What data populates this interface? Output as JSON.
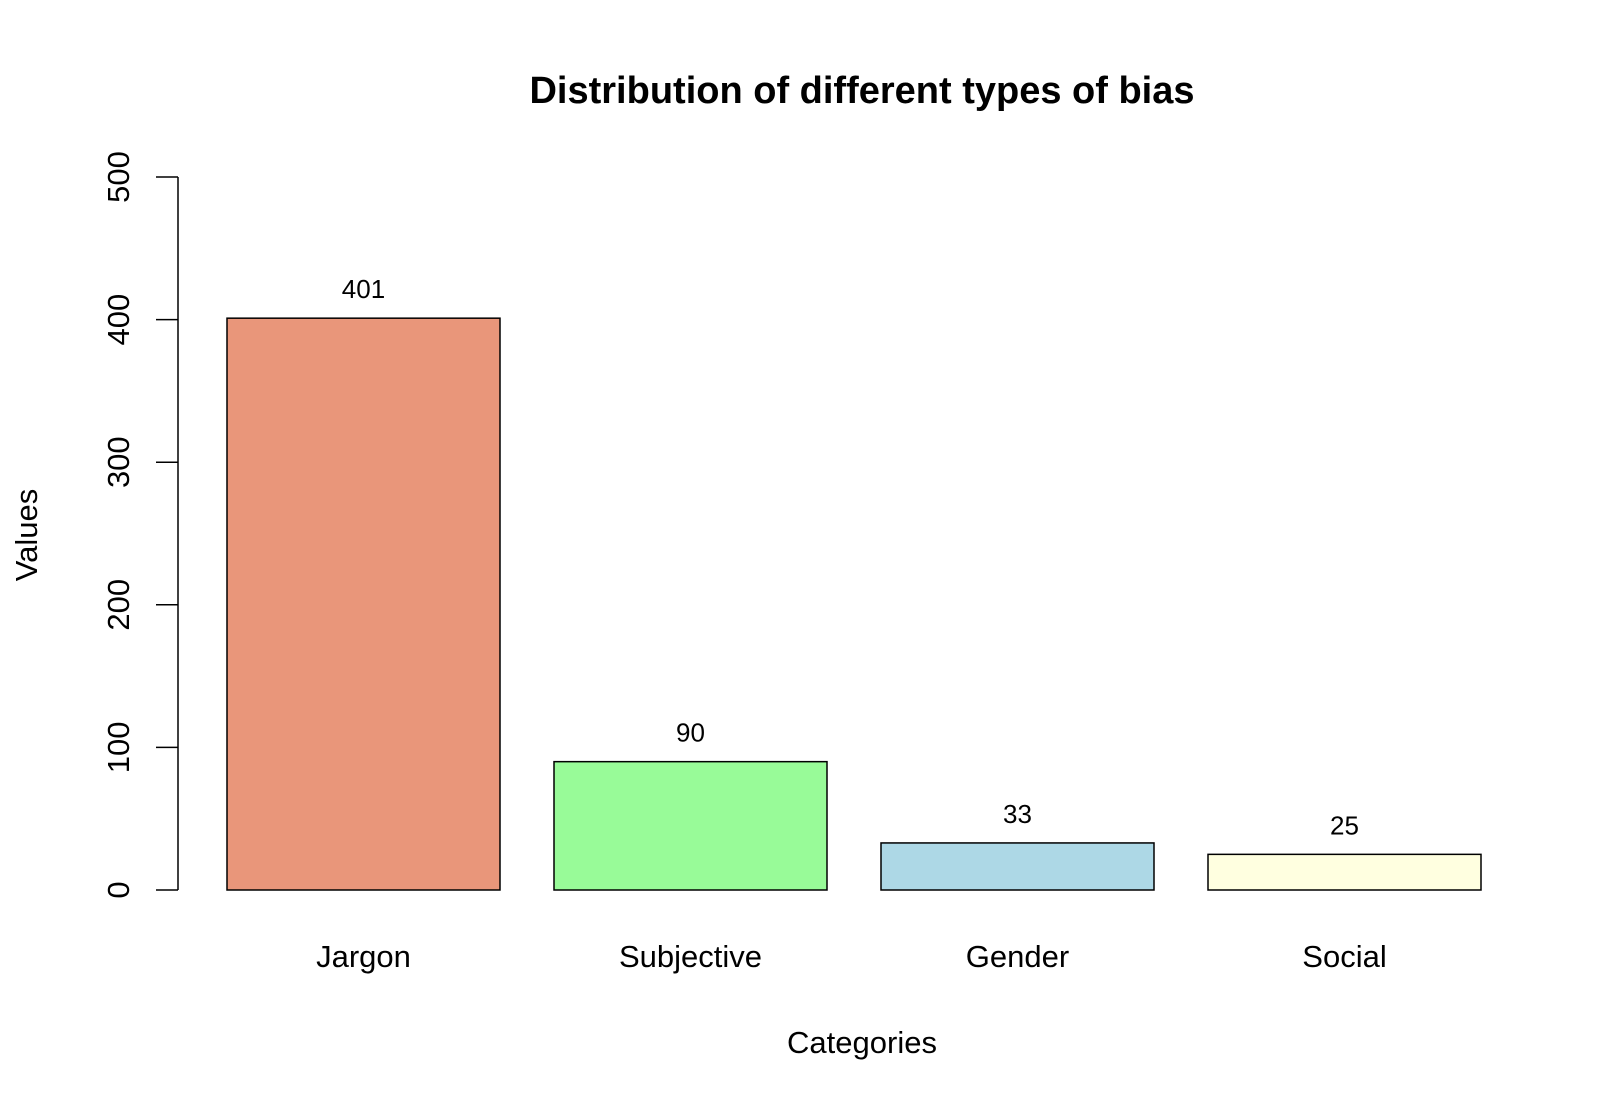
{
  "chart_data": {
    "type": "bar",
    "title": "Distribution of different types of bias",
    "xlabel": "Categories",
    "ylabel": "Values",
    "categories": [
      "Jargon",
      "Subjective",
      "Gender",
      "Social"
    ],
    "values": [
      401,
      90,
      33,
      25
    ],
    "value_labels": [
      "401",
      "90",
      "33",
      "25"
    ],
    "colors": [
      "#E9967A",
      "#98FB98",
      "#ADD8E6",
      "#FFFFE0"
    ],
    "ylim": [
      0,
      500
    ],
    "yticks": [
      0,
      100,
      200,
      300,
      400,
      500
    ],
    "ytick_labels": [
      "0",
      "100",
      "200",
      "300",
      "400",
      "500"
    ],
    "grid": false,
    "legend": "none"
  }
}
